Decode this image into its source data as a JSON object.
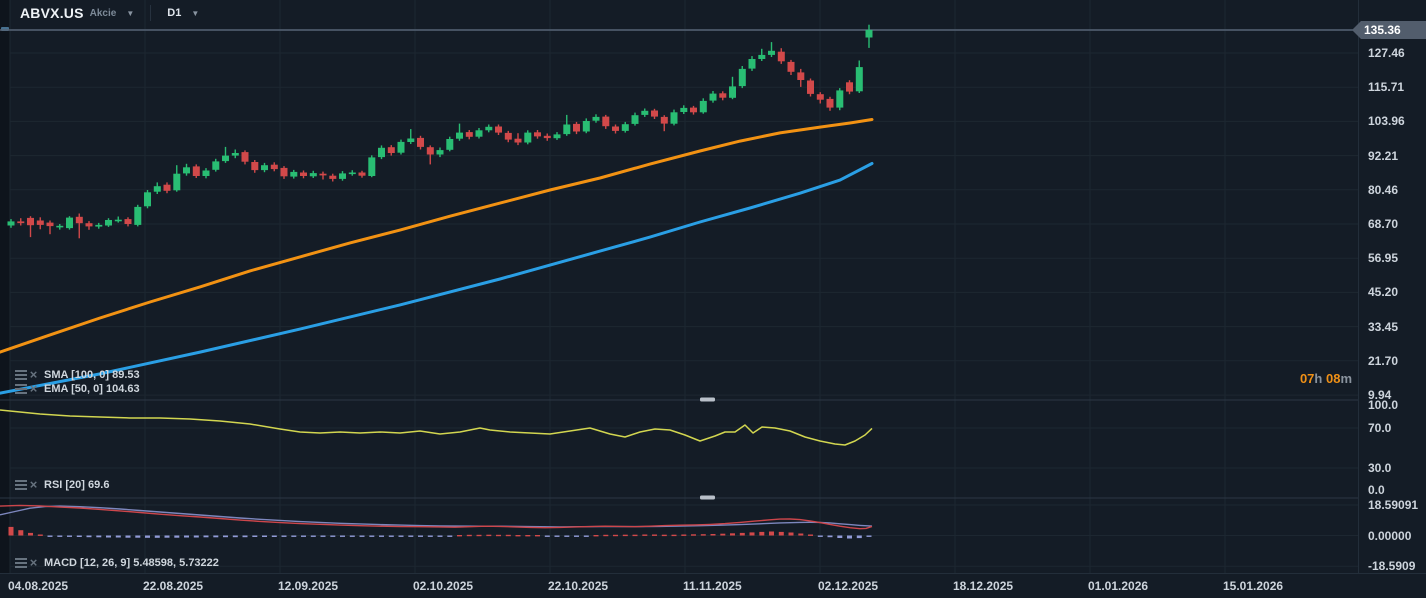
{
  "header": {
    "symbol": "ABVX.US",
    "instrument_type": "Akcie",
    "timeframe": "D1"
  },
  "colors": {
    "background": "#141c26",
    "grid": "#1d2731",
    "separator": "#2b3644",
    "axis_text": "#cdd4dc",
    "candle_up": "#29bd73",
    "candle_down": "#d2494a",
    "ema_line": "#f29213",
    "sma_line": "#2a9fe5",
    "rsi_line": "#d2d650",
    "macd_line": "#cd464b",
    "macd_signal": "#7d87be",
    "hist_pos": "#d2494a",
    "hist_neg": "#919bd7",
    "price_tag_bg": "#525d6c",
    "last_price_line": "#566476",
    "countdown_accent": "#ef9016"
  },
  "legends": {
    "sma": {
      "label": "SMA [100, 0]",
      "value": "89.53"
    },
    "ema": {
      "label": "EMA [50, 0]",
      "value": "104.63"
    },
    "rsi": {
      "label": "RSI [20]",
      "value": "69.6"
    },
    "macd": {
      "label": "MACD [12, 26, 9]",
      "value": "5.48598,  5.73222"
    }
  },
  "countdown": {
    "hours": "07",
    "hours_unit": "h ",
    "minutes": "08",
    "minutes_unit": "m"
  },
  "price_axis": {
    "current": {
      "label": "135.36",
      "value": 135.36
    },
    "ticks": [
      {
        "label": "127.46",
        "value": 127.46
      },
      {
        "label": "115.71",
        "value": 115.71
      },
      {
        "label": "103.96",
        "value": 103.96
      },
      {
        "label": "92.21",
        "value": 92.21
      },
      {
        "label": "80.46",
        "value": 80.46
      },
      {
        "label": "68.70",
        "value": 68.7
      },
      {
        "label": "56.95",
        "value": 56.95
      },
      {
        "label": "45.20",
        "value": 45.2
      },
      {
        "label": "33.45",
        "value": 33.45
      },
      {
        "label": "21.70",
        "value": 21.7
      },
      {
        "label": "9.94",
        "value": 9.94
      }
    ]
  },
  "rsi_axis": [
    {
      "label": "100.0",
      "value": 100
    },
    {
      "label": "70.0",
      "value": 70
    },
    {
      "label": "30.0",
      "value": 30
    },
    {
      "label": "0.0",
      "value": 0
    }
  ],
  "macd_axis": [
    {
      "label": "18.59091",
      "value": 18.59091
    },
    {
      "label": "0.00000",
      "value": 0
    },
    {
      "label": "-18.5909",
      "value": -18.5909
    }
  ],
  "time_axis": [
    "04.08.2025",
    "22.08.2025",
    "12.09.2025",
    "02.10.2025",
    "22.10.2025",
    "11.11.2025",
    "02.12.2025",
    "18.12.2025",
    "01.01.2026",
    "15.01.2026"
  ],
  "chart_data": {
    "type": "candlestick",
    "title": "ABVX.US daily candles with EMA50, SMA100, RSI(20), MACD(12,26,9)",
    "legend_position": "top-left-of-each-panel",
    "grid": true,
    "price_ylim_visible": [
      9.94,
      135.36
    ],
    "rsi_ylim": [
      0,
      100
    ],
    "macd_ylim": [
      -18.5909,
      18.59091
    ],
    "last_price": 135.36,
    "candles_ohlc": [
      [
        68.2,
        70.4,
        67.4,
        69.6
      ],
      [
        69.6,
        70.7,
        68.2,
        69.0
      ],
      [
        70.8,
        71.4,
        64.2,
        68.3
      ],
      [
        69.9,
        71.0,
        66.9,
        68.4
      ],
      [
        69.2,
        69.9,
        65.2,
        68.0
      ],
      [
        67.7,
        68.7,
        66.8,
        68.1
      ],
      [
        67.3,
        71.4,
        66.8,
        70.9
      ],
      [
        71.2,
        72.3,
        63.8,
        69.0
      ],
      [
        69.0,
        69.7,
        66.7,
        67.9
      ],
      [
        67.8,
        69.1,
        67.1,
        68.4
      ],
      [
        68.2,
        70.7,
        67.7,
        70.1
      ],
      [
        69.9,
        71.3,
        69.2,
        70.2
      ],
      [
        70.4,
        71.0,
        67.9,
        68.7
      ],
      [
        68.4,
        75.3,
        67.9,
        74.6
      ],
      [
        74.8,
        80.4,
        74.1,
        79.6
      ],
      [
        79.8,
        83.0,
        79.0,
        81.7
      ],
      [
        82.2,
        83.0,
        79.3,
        80.1
      ],
      [
        80.3,
        88.9,
        79.8,
        86.0
      ],
      [
        86.1,
        89.4,
        85.3,
        88.2
      ],
      [
        88.5,
        89.2,
        84.5,
        85.2
      ],
      [
        85.2,
        87.9,
        84.4,
        87.1
      ],
      [
        87.3,
        91.1,
        86.7,
        90.2
      ],
      [
        90.3,
        95.2,
        89.7,
        92.2
      ],
      [
        92.2,
        94.3,
        91.3,
        93.1
      ],
      [
        93.4,
        94.0,
        89.2,
        90.1
      ],
      [
        90.0,
        90.7,
        86.3,
        87.2
      ],
      [
        87.2,
        89.7,
        86.5,
        88.9
      ],
      [
        89.1,
        89.9,
        86.8,
        87.6
      ],
      [
        88.0,
        88.6,
        84.2,
        85.1
      ],
      [
        85.0,
        87.3,
        84.3,
        86.6
      ],
      [
        86.4,
        87.1,
        84.4,
        85.2
      ],
      [
        85.1,
        87.0,
        84.5,
        86.2
      ],
      [
        86.0,
        86.7,
        84.0,
        85.4
      ],
      [
        85.3,
        86.0,
        83.3,
        84.2
      ],
      [
        84.2,
        86.9,
        83.6,
        86.1
      ],
      [
        86.0,
        87.2,
        85.3,
        86.4
      ],
      [
        86.4,
        87.0,
        84.6,
        85.3
      ],
      [
        85.2,
        92.3,
        84.8,
        91.6
      ],
      [
        91.7,
        95.7,
        91.0,
        94.9
      ],
      [
        95.1,
        95.8,
        92.2,
        93.1
      ],
      [
        93.2,
        97.7,
        92.6,
        96.9
      ],
      [
        96.9,
        101.3,
        96.2,
        98.1
      ],
      [
        98.3,
        99.0,
        94.3,
        95.2
      ],
      [
        95.1,
        95.7,
        89.2,
        92.6
      ],
      [
        92.6,
        95.0,
        91.7,
        94.1
      ],
      [
        94.2,
        98.7,
        93.7,
        97.9
      ],
      [
        98.0,
        103.2,
        97.3,
        100.1
      ],
      [
        100.3,
        101.0,
        97.8,
        98.7
      ],
      [
        98.7,
        101.7,
        98.1,
        100.9
      ],
      [
        100.9,
        102.9,
        100.2,
        102.1
      ],
      [
        102.2,
        102.9,
        99.3,
        100.1
      ],
      [
        100.0,
        100.7,
        96.8,
        97.7
      ],
      [
        98.0,
        99.9,
        95.8,
        96.7
      ],
      [
        96.7,
        100.9,
        96.1,
        100.1
      ],
      [
        100.2,
        101.0,
        98.0,
        98.8
      ],
      [
        99.0,
        99.8,
        97.3,
        98.2
      ],
      [
        98.2,
        100.3,
        97.6,
        99.5
      ],
      [
        99.6,
        106.2,
        99.0,
        102.9
      ],
      [
        103.1,
        103.8,
        99.6,
        100.5
      ],
      [
        100.5,
        105.0,
        99.9,
        104.1
      ],
      [
        104.2,
        106.4,
        103.5,
        105.5
      ],
      [
        105.6,
        106.2,
        101.4,
        102.3
      ],
      [
        102.2,
        102.9,
        99.8,
        100.7
      ],
      [
        100.7,
        103.8,
        100.1,
        103.0
      ],
      [
        103.1,
        107.0,
        102.5,
        106.1
      ],
      [
        106.2,
        108.4,
        105.5,
        107.6
      ],
      [
        107.7,
        108.3,
        104.8,
        105.6
      ],
      [
        105.5,
        106.1,
        100.6,
        103.2
      ],
      [
        103.2,
        108.0,
        102.6,
        107.1
      ],
      [
        107.2,
        109.5,
        106.5,
        108.6
      ],
      [
        108.7,
        109.3,
        106.3,
        107.1
      ],
      [
        107.1,
        111.9,
        106.6,
        111.0
      ],
      [
        111.1,
        114.4,
        110.4,
        113.5
      ],
      [
        113.6,
        114.3,
        111.2,
        112.1
      ],
      [
        112.1,
        119.3,
        111.6,
        116.0
      ],
      [
        116.1,
        123.0,
        115.4,
        122.0
      ],
      [
        122.1,
        126.4,
        121.3,
        125.4
      ],
      [
        125.4,
        128.9,
        124.7,
        126.8
      ],
      [
        126.8,
        131.2,
        126.1,
        128.2
      ],
      [
        127.9,
        129.1,
        123.7,
        124.6
      ],
      [
        124.4,
        125.1,
        119.9,
        121.0
      ],
      [
        120.8,
        122.0,
        115.8,
        118.2
      ],
      [
        118.0,
        118.7,
        112.5,
        113.4
      ],
      [
        113.3,
        114.0,
        110.1,
        111.4
      ],
      [
        111.7,
        112.4,
        107.6,
        108.7
      ],
      [
        108.7,
        115.4,
        107.8,
        114.6
      ],
      [
        117.4,
        118.1,
        113.3,
        114.2
      ],
      [
        114.3,
        124.9,
        113.7,
        122.6
      ],
      [
        132.8,
        137.2,
        129.2,
        135.4
      ]
    ],
    "ema50": [
      [
        0,
        24.7
      ],
      [
        50,
        30.6
      ],
      [
        100,
        36.4
      ],
      [
        150,
        41.9
      ],
      [
        200,
        47.1
      ],
      [
        250,
        52.6
      ],
      [
        300,
        57.4
      ],
      [
        350,
        62.2
      ],
      [
        400,
        66.6
      ],
      [
        450,
        71.4
      ],
      [
        500,
        75.9
      ],
      [
        550,
        80.4
      ],
      [
        600,
        84.5
      ],
      [
        650,
        89.3
      ],
      [
        700,
        93.8
      ],
      [
        740,
        97.2
      ],
      [
        780,
        100.0
      ],
      [
        820,
        102.0
      ],
      [
        850,
        103.4
      ],
      [
        872,
        104.6
      ]
    ],
    "sma100": [
      [
        0,
        10.6
      ],
      [
        100,
        17.2
      ],
      [
        200,
        24.7
      ],
      [
        300,
        32.6
      ],
      [
        400,
        40.9
      ],
      [
        500,
        49.8
      ],
      [
        600,
        59.4
      ],
      [
        650,
        64.2
      ],
      [
        700,
        69.4
      ],
      [
        750,
        74.2
      ],
      [
        800,
        79.3
      ],
      [
        840,
        83.8
      ],
      [
        872,
        89.5
      ]
    ],
    "rsi20": [
      [
        0,
        88
      ],
      [
        20,
        86
      ],
      [
        40,
        84
      ],
      [
        70,
        82
      ],
      [
        100,
        81
      ],
      [
        130,
        80
      ],
      [
        160,
        80
      ],
      [
        190,
        79
      ],
      [
        220,
        77
      ],
      [
        250,
        74
      ],
      [
        280,
        69
      ],
      [
        300,
        66
      ],
      [
        320,
        65
      ],
      [
        340,
        66
      ],
      [
        360,
        65
      ],
      [
        380,
        66
      ],
      [
        400,
        65
      ],
      [
        420,
        67
      ],
      [
        440,
        64
      ],
      [
        460,
        66
      ],
      [
        480,
        70
      ],
      [
        490,
        68
      ],
      [
        510,
        66
      ],
      [
        530,
        65
      ],
      [
        550,
        64
      ],
      [
        570,
        67
      ],
      [
        590,
        70
      ],
      [
        610,
        64
      ],
      [
        625,
        61
      ],
      [
        640,
        66
      ],
      [
        655,
        69
      ],
      [
        670,
        68
      ],
      [
        685,
        63
      ],
      [
        700,
        57
      ],
      [
        715,
        62
      ],
      [
        725,
        66
      ],
      [
        735,
        66
      ],
      [
        745,
        73
      ],
      [
        753,
        65
      ],
      [
        762,
        71
      ],
      [
        775,
        70
      ],
      [
        790,
        67
      ],
      [
        805,
        61
      ],
      [
        820,
        57
      ],
      [
        835,
        54
      ],
      [
        845,
        53
      ],
      [
        855,
        57
      ],
      [
        865,
        63
      ],
      [
        872,
        69.6
      ]
    ],
    "macd_line": [
      [
        0,
        17.8
      ],
      [
        20,
        18.2
      ],
      [
        40,
        17.9
      ],
      [
        60,
        17.2
      ],
      [
        80,
        16.6
      ],
      [
        100,
        15.8
      ],
      [
        120,
        14.9
      ],
      [
        140,
        13.9
      ],
      [
        160,
        12.9
      ],
      [
        180,
        12.0
      ],
      [
        200,
        11.2
      ],
      [
        220,
        10.3
      ],
      [
        240,
        9.3
      ],
      [
        260,
        8.5
      ],
      [
        280,
        7.8
      ],
      [
        300,
        7.2
      ],
      [
        320,
        6.8
      ],
      [
        340,
        6.3
      ],
      [
        360,
        5.9
      ],
      [
        380,
        5.6
      ],
      [
        400,
        5.4
      ],
      [
        420,
        5.3
      ],
      [
        440,
        5.2
      ],
      [
        455,
        5.0
      ],
      [
        470,
        5.3
      ],
      [
        485,
        5.6
      ],
      [
        500,
        5.5
      ],
      [
        515,
        5.2
      ],
      [
        530,
        4.9
      ],
      [
        545,
        4.7
      ],
      [
        560,
        4.9
      ],
      [
        575,
        5.2
      ],
      [
        590,
        5.4
      ],
      [
        605,
        5.6
      ],
      [
        620,
        5.5
      ],
      [
        635,
        5.3
      ],
      [
        650,
        5.6
      ],
      [
        665,
        6.0
      ],
      [
        680,
        6.2
      ],
      [
        695,
        6.4
      ],
      [
        710,
        6.7
      ],
      [
        725,
        7.2
      ],
      [
        740,
        7.9
      ],
      [
        755,
        8.7
      ],
      [
        770,
        9.5
      ],
      [
        780,
        9.9
      ],
      [
        790,
        10.0
      ],
      [
        800,
        9.6
      ],
      [
        810,
        8.8
      ],
      [
        820,
        7.8
      ],
      [
        830,
        6.7
      ],
      [
        840,
        5.6
      ],
      [
        850,
        4.7
      ],
      [
        860,
        4.1
      ],
      [
        866,
        4.3
      ],
      [
        872,
        5.5
      ]
    ],
    "macd_signal": [
      [
        0,
        12.5
      ],
      [
        15,
        14.5
      ],
      [
        30,
        16.5
      ],
      [
        45,
        17.5
      ],
      [
        60,
        17.8
      ],
      [
        80,
        17.4
      ],
      [
        100,
        16.8
      ],
      [
        120,
        16.0
      ],
      [
        140,
        15.1
      ],
      [
        160,
        14.2
      ],
      [
        180,
        13.3
      ],
      [
        200,
        12.4
      ],
      [
        220,
        11.5
      ],
      [
        240,
        10.6
      ],
      [
        260,
        9.8
      ],
      [
        280,
        9.1
      ],
      [
        300,
        8.4
      ],
      [
        320,
        7.9
      ],
      [
        340,
        7.4
      ],
      [
        360,
        7.0
      ],
      [
        380,
        6.6
      ],
      [
        400,
        6.3
      ],
      [
        420,
        6.0
      ],
      [
        440,
        5.8
      ],
      [
        460,
        5.7
      ],
      [
        480,
        5.6
      ],
      [
        500,
        5.6
      ],
      [
        520,
        5.5
      ],
      [
        540,
        5.3
      ],
      [
        560,
        5.2
      ],
      [
        580,
        5.3
      ],
      [
        600,
        5.4
      ],
      [
        620,
        5.4
      ],
      [
        640,
        5.4
      ],
      [
        660,
        5.5
      ],
      [
        680,
        5.7
      ],
      [
        700,
        5.9
      ],
      [
        720,
        6.2
      ],
      [
        740,
        6.6
      ],
      [
        760,
        7.1
      ],
      [
        780,
        7.6
      ],
      [
        800,
        7.9
      ],
      [
        810,
        8.0
      ],
      [
        820,
        7.9
      ],
      [
        830,
        7.6
      ],
      [
        840,
        7.1
      ],
      [
        850,
        6.6
      ],
      [
        860,
        6.1
      ],
      [
        872,
        5.7
      ]
    ],
    "macd_histogram": [
      5.2,
      3.2,
      1.6,
      0.6,
      -0.4,
      -0.6,
      -0.8,
      -0.9,
      -1.0,
      -1.1,
      -1.2,
      -1.2,
      -1.3,
      -1.3,
      -1.4,
      -1.4,
      -1.3,
      -1.3,
      -1.2,
      -1.2,
      -1.1,
      -1.1,
      -1.0,
      -1.0,
      -1.0,
      -0.9,
      -0.9,
      -0.9,
      -0.8,
      -0.8,
      -0.8,
      -0.7,
      -0.7,
      -0.7,
      -0.6,
      -0.6,
      -0.6,
      -0.6,
      -0.5,
      -0.5,
      -0.5,
      -0.5,
      -0.4,
      -0.4,
      -0.4,
      -0.4,
      0.3,
      0.4,
      0.4,
      0.5,
      0.4,
      0.4,
      0.3,
      0.3,
      0.3,
      -0.3,
      -0.4,
      -0.4,
      -0.3,
      -0.3,
      0.3,
      0.4,
      0.4,
      0.5,
      0.5,
      0.6,
      0.6,
      0.5,
      0.5,
      0.6,
      0.7,
      0.8,
      0.9,
      1.1,
      1.3,
      1.6,
      1.9,
      2.2,
      2.4,
      2.2,
      1.8,
      1.2,
      0.6,
      -0.5,
      -1.0,
      -1.5,
      -1.8,
      -1.6,
      -0.8
    ]
  }
}
